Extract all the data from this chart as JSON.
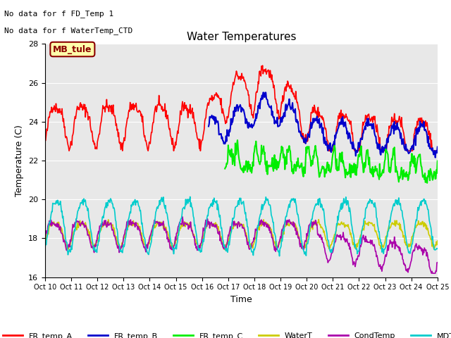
{
  "title": "Water Temperatures",
  "xlabel": "Time",
  "ylabel": "Temperature (C)",
  "ylim": [
    16,
    28
  ],
  "xlim": [
    0,
    360
  ],
  "xtick_labels": [
    "Oct 10",
    "Oct 11",
    "Oct 12",
    "Oct 13",
    "Oct 14",
    "Oct 15",
    "Oct 16",
    "Oct 17",
    "Oct 18",
    "Oct 19",
    "Oct 20",
    "Oct 21",
    "Oct 22",
    "Oct 23",
    "Oct 24",
    "Oct 25"
  ],
  "bg_color": "#e8e8e8",
  "annotation1": "No data for f FD_Temp 1",
  "annotation2": "No data for f WaterTemp_CTD",
  "mb_label": "MB_tule",
  "series": {
    "FR_temp_A": {
      "color": "#ff0000",
      "lw": 1.2
    },
    "FR_temp_B": {
      "color": "#0000cc",
      "lw": 1.5
    },
    "FR_temp_C": {
      "color": "#00ee00",
      "lw": 1.5
    },
    "WaterT": {
      "color": "#cccc00",
      "lw": 1.2
    },
    "CondTemp": {
      "color": "#aa00aa",
      "lw": 1.2
    },
    "MDTemp_A": {
      "color": "#00cccc",
      "lw": 1.2
    }
  }
}
